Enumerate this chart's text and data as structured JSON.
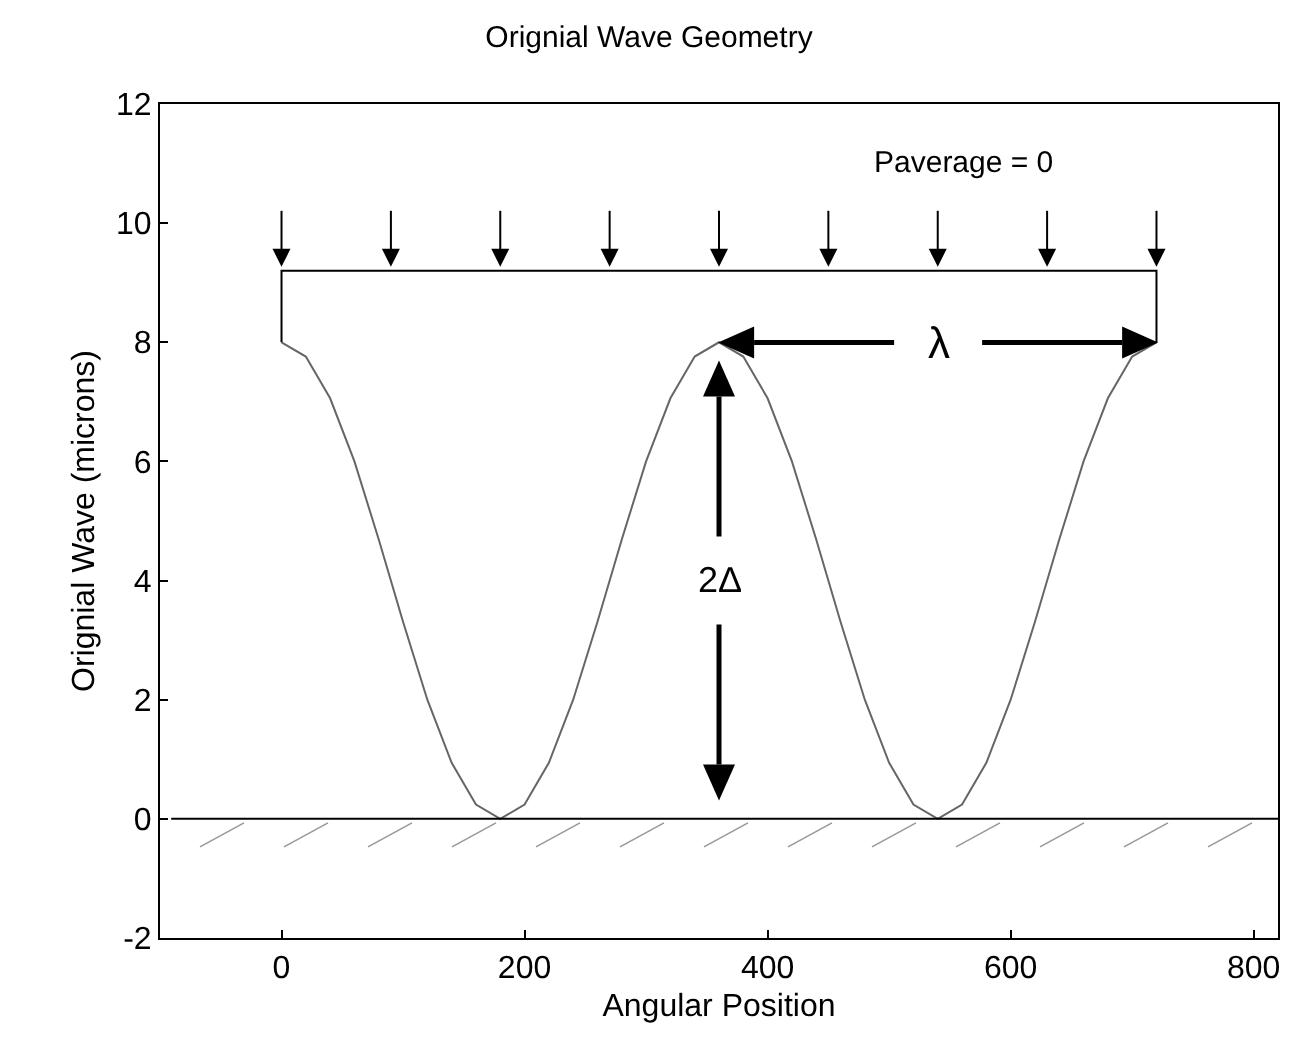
{
  "chart_data": {
    "type": "line",
    "title": "Orignial Wave Geometry",
    "xlabel": "Angular Position",
    "ylabel": "Orignial Wave (microns)",
    "xlim": [
      -100,
      820
    ],
    "xticks": [
      0,
      200,
      400,
      600,
      800
    ],
    "ylim": [
      -2,
      12
    ],
    "yticks": [
      -2,
      0,
      2,
      4,
      6,
      8,
      10,
      12
    ],
    "grid": false,
    "legend": false,
    "series": [
      {
        "color": "#666666",
        "x": [
          0,
          20,
          40,
          60,
          80,
          100,
          120,
          140,
          160,
          180,
          200,
          220,
          240,
          260,
          280,
          300,
          320,
          340,
          360,
          380,
          400,
          420,
          440,
          460,
          480,
          500,
          520,
          540,
          560,
          580,
          600,
          620,
          640,
          660,
          680,
          700,
          720
        ],
        "values": [
          8,
          7.76,
          7.06,
          6,
          4.69,
          3.31,
          2,
          0.94,
          0.24,
          0,
          0.24,
          0.94,
          2,
          3.31,
          4.69,
          6,
          7.06,
          7.76,
          8,
          7.76,
          7.06,
          6,
          4.69,
          3.31,
          2,
          0.94,
          0.24,
          0,
          0.24,
          0.94,
          2,
          3.31,
          4.69,
          6,
          7.06,
          7.76,
          8
        ]
      },
      {
        "color": "#000000",
        "x": [
          0,
          0,
          720,
          720
        ],
        "values": [
          8,
          9.2,
          9.2,
          8
        ]
      }
    ],
    "ref_lines": [
      {
        "axis": "y",
        "value": 0,
        "color": "#000000"
      }
    ],
    "annotations": [
      "Paverage = 0",
      "λ",
      "2Δ"
    ]
  }
}
